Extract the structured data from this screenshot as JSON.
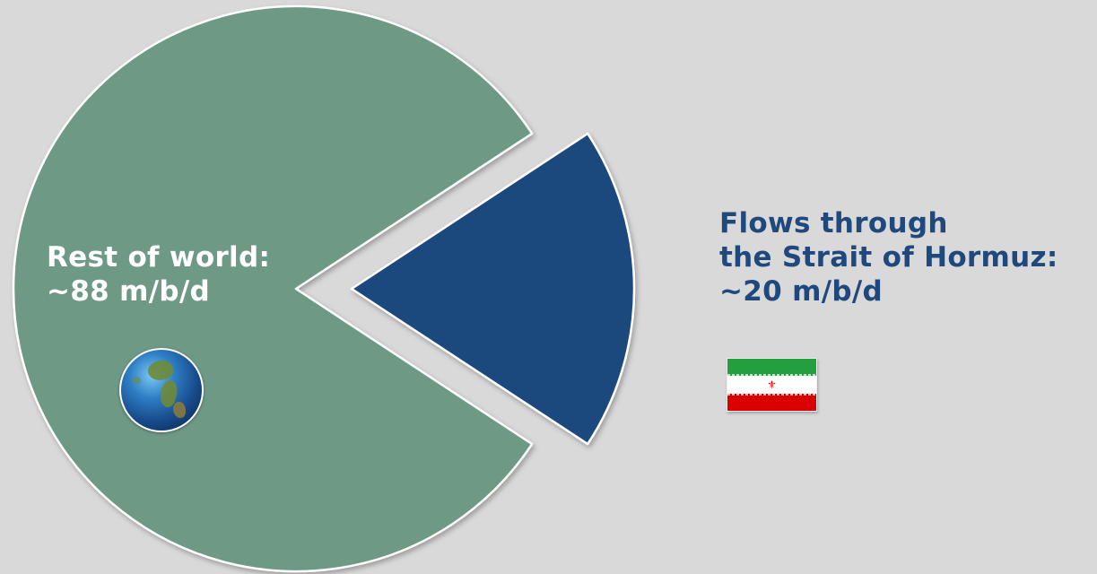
{
  "chart_data": {
    "type": "pie",
    "slices": [
      {
        "label": "Rest of world",
        "value": 88,
        "color": "#6e9985",
        "exploded": false
      },
      {
        "label": "Flows through the Strait of Hormuz",
        "value": 20,
        "color": "#1f497d",
        "exploded": true
      }
    ],
    "annotations": {
      "rest_of_world": {
        "line1": "Rest of world:",
        "line2": "~88 m/b/d"
      },
      "hormuz": {
        "line1": "Flows through",
        "line2": "the Strait of Hormuz:",
        "line3": "~20 m/b/d"
      }
    }
  },
  "icons": {
    "globe": "globe-icon",
    "flag": "iran-flag-icon"
  },
  "colors": {
    "background": "#d9d9d9",
    "rest_label": "#ffffff",
    "hormuz_label": "#1f497d"
  }
}
